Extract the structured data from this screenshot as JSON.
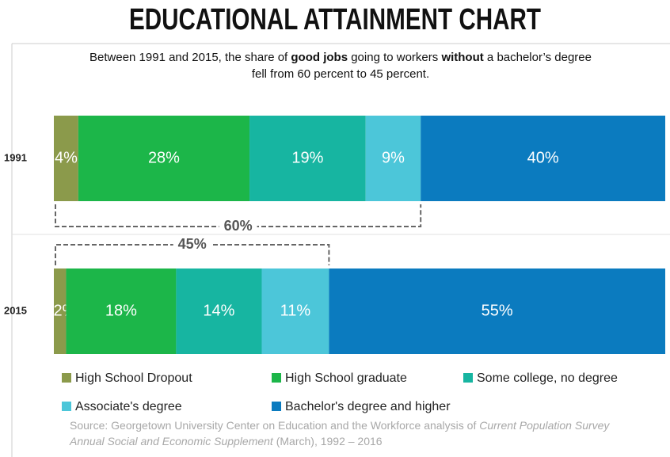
{
  "chart_data": {
    "type": "stacked-bar-horizontal",
    "title": "EDUCATIONAL ATTAINMENT CHART",
    "subtitle": [
      {
        "text": "Between 1991 and 2015, the share of ",
        "bold": false
      },
      {
        "text": "good jobs",
        "bold": true
      },
      {
        "text": " going to workers ",
        "bold": false
      },
      {
        "text": "without",
        "bold": true
      },
      {
        "text": " a bachelor’s degree fell from 60 percent to 45 percent.",
        "bold": false
      }
    ],
    "categories": [
      "1991",
      "2015"
    ],
    "xlim": [
      0,
      100
    ],
    "series": [
      {
        "name": "High School Dropout",
        "color": "#8b9a4b",
        "values": [
          4,
          2
        ],
        "value_labels": [
          "4%",
          "2%"
        ]
      },
      {
        "name": "High School graduate",
        "color": "#1cb649",
        "values": [
          28,
          18
        ],
        "value_labels": [
          "28%",
          "18%"
        ]
      },
      {
        "name": "Some college, no degree",
        "color": "#17b5a1",
        "values": [
          19,
          14
        ],
        "value_labels": [
          "19%",
          "14%"
        ]
      },
      {
        "name": "Associate's degree",
        "color": "#4cc6d9",
        "values": [
          9,
          11
        ],
        "value_labels": [
          "9%",
          "11%"
        ]
      },
      {
        "name": "Bachelor's degree and higher",
        "color": "#0b7bbf",
        "values": [
          40,
          55
        ],
        "value_labels": [
          "40%",
          "55%"
        ]
      }
    ],
    "annotations": [
      "60%",
      "45%"
    ],
    "source": [
      {
        "text": "Source: Georgetown University Center on Education and the Workforce analysis of ",
        "italic": false
      },
      {
        "text": "Current Population Survey Annual Social and Economic Supplement",
        "italic": true
      },
      {
        "text": " (March), 1992 – 2016",
        "italic": false
      }
    ]
  }
}
